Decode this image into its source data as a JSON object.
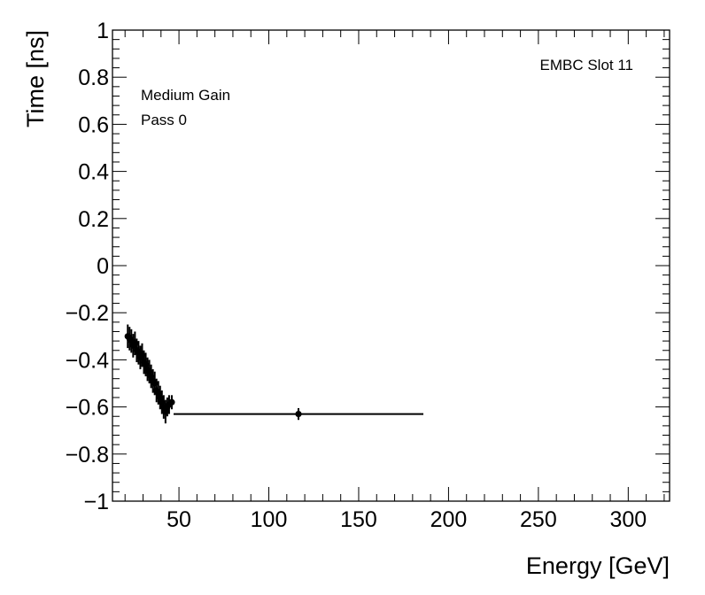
{
  "chart_data": {
    "type": "scatter",
    "xlabel": "Energy [GeV]",
    "ylabel": "Time [ns]",
    "xlim": [
      13,
      323
    ],
    "ylim": [
      -1,
      1
    ],
    "x_ticks": [
      50,
      100,
      150,
      200,
      250,
      300
    ],
    "x_tick_labels": [
      "50",
      "100",
      "150",
      "200",
      "250",
      "300"
    ],
    "y_ticks": [
      -1,
      -0.8,
      -0.6,
      -0.4,
      -0.2,
      0,
      0.2,
      0.4,
      0.6,
      0.8,
      1
    ],
    "y_tick_labels": [
      "−1",
      "−0.8",
      "−0.6",
      "−0.4",
      "−0.2",
      "0",
      "0.2",
      "0.4",
      "0.6",
      "0.8",
      "1"
    ],
    "annotations": {
      "slot": "EMBC Slot 11",
      "gain": "Medium Gain",
      "pass": "Pass 0"
    },
    "grid": false,
    "marker_color": "#000000",
    "series": [
      {
        "points": [
          {
            "x": 21.5,
            "y": -0.3,
            "yerr": 0.05,
            "xerr": 0.5
          },
          {
            "x": 22.5,
            "y": -0.31,
            "yerr": 0.05,
            "xerr": 0.5
          },
          {
            "x": 23.5,
            "y": -0.32,
            "yerr": 0.05,
            "xerr": 0.5
          },
          {
            "x": 24.5,
            "y": -0.34,
            "yerr": 0.05,
            "xerr": 0.5
          },
          {
            "x": 25.5,
            "y": -0.33,
            "yerr": 0.05,
            "xerr": 0.5
          },
          {
            "x": 26.5,
            "y": -0.36,
            "yerr": 0.05,
            "xerr": 0.5
          },
          {
            "x": 27.5,
            "y": -0.37,
            "yerr": 0.05,
            "xerr": 0.5
          },
          {
            "x": 28.5,
            "y": -0.39,
            "yerr": 0.05,
            "xerr": 0.5
          },
          {
            "x": 29.5,
            "y": -0.38,
            "yerr": 0.05,
            "xerr": 0.5
          },
          {
            "x": 30.5,
            "y": -0.41,
            "yerr": 0.05,
            "xerr": 0.5
          },
          {
            "x": 31.5,
            "y": -0.42,
            "yerr": 0.05,
            "xerr": 0.5
          },
          {
            "x": 32.5,
            "y": -0.44,
            "yerr": 0.05,
            "xerr": 0.5
          },
          {
            "x": 33.5,
            "y": -0.45,
            "yerr": 0.05,
            "xerr": 0.5
          },
          {
            "x": 34.5,
            "y": -0.47,
            "yerr": 0.05,
            "xerr": 0.5
          },
          {
            "x": 35.5,
            "y": -0.49,
            "yerr": 0.05,
            "xerr": 0.5
          },
          {
            "x": 36.5,
            "y": -0.5,
            "yerr": 0.05,
            "xerr": 0.5
          },
          {
            "x": 37.5,
            "y": -0.53,
            "yerr": 0.05,
            "xerr": 0.5
          },
          {
            "x": 38.5,
            "y": -0.54,
            "yerr": 0.05,
            "xerr": 0.5
          },
          {
            "x": 39.5,
            "y": -0.56,
            "yerr": 0.05,
            "xerr": 0.5
          },
          {
            "x": 40.5,
            "y": -0.58,
            "yerr": 0.05,
            "xerr": 0.5
          },
          {
            "x": 41.5,
            "y": -0.6,
            "yerr": 0.05,
            "xerr": 0.5
          },
          {
            "x": 42.5,
            "y": -0.62,
            "yerr": 0.05,
            "xerr": 0.5
          },
          {
            "x": 43.5,
            "y": -0.6,
            "yerr": 0.04,
            "xerr": 0.5
          },
          {
            "x": 44.5,
            "y": -0.59,
            "yerr": 0.04,
            "xerr": 0.5
          },
          {
            "x": 46.0,
            "y": -0.58,
            "yerr": 0.03,
            "xerr": 1.0
          },
          {
            "x": 116.5,
            "y": -0.63,
            "yerr": 0.025,
            "xerr": 69.5
          }
        ]
      }
    ]
  }
}
